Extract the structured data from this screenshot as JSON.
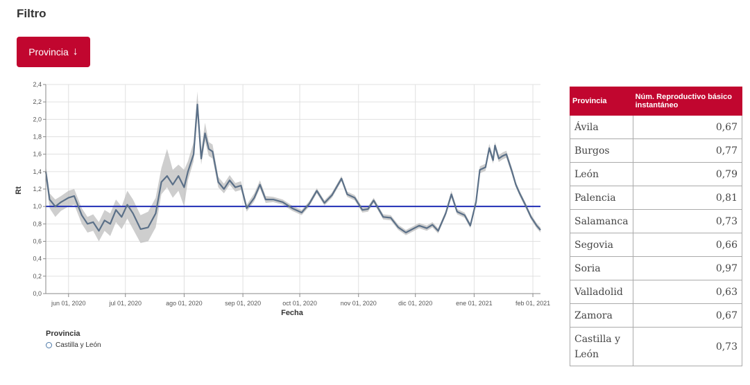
{
  "header": {
    "title": "Filtro"
  },
  "filter_button": {
    "label": "Provincia",
    "icon": "arrow-down-icon"
  },
  "colors": {
    "accent": "#c1062f",
    "series_line": "#5b7088",
    "band": "#bdbdbd",
    "reference_line": "#1f2db5"
  },
  "legend": {
    "title": "Provincia",
    "items": [
      "Castilla y León"
    ]
  },
  "table": {
    "headers": [
      "Provincia",
      "Núm. Reproductivo básico instantáneo"
    ],
    "rows": [
      {
        "provincia": "Ávila",
        "valor": "0,67"
      },
      {
        "provincia": "Burgos",
        "valor": "0,77"
      },
      {
        "provincia": "León",
        "valor": "0,79"
      },
      {
        "provincia": "Palencia",
        "valor": "0,81"
      },
      {
        "provincia": "Salamanca",
        "valor": "0,73"
      },
      {
        "provincia": "Segovia",
        "valor": "0,66"
      },
      {
        "provincia": "Soria",
        "valor": "0,97"
      },
      {
        "provincia": "Valladolid",
        "valor": "0,63"
      },
      {
        "provincia": "Zamora",
        "valor": "0,67"
      },
      {
        "provincia": "Castilla y León",
        "valor": "0,73"
      }
    ]
  },
  "chart_data": {
    "type": "line",
    "xlabel": "Fecha",
    "ylabel": "Rt",
    "ylim": [
      0,
      2.4
    ],
    "xlim": [
      "2020-05-20",
      "2021-02-05"
    ],
    "grid": true,
    "legend_placement": "bottom-left",
    "yticks": [
      "0,0",
      "0,2",
      "0,4",
      "0,6",
      "0,8",
      "1,0",
      "1,2",
      "1,4",
      "1,6",
      "1,8",
      "2,0",
      "2,2",
      "2,4"
    ],
    "xticks": [
      {
        "date": "2020-06-01",
        "label": "jun 01, 2020"
      },
      {
        "date": "2020-07-01",
        "label": "jul 01, 2020"
      },
      {
        "date": "2020-08-01",
        "label": "ago 01, 2020"
      },
      {
        "date": "2020-09-01",
        "label": "sep 01, 2020"
      },
      {
        "date": "2020-10-01",
        "label": "oct 01, 2020"
      },
      {
        "date": "2020-11-01",
        "label": "nov 01, 2020"
      },
      {
        "date": "2020-12-01",
        "label": "dic 01, 2020"
      },
      {
        "date": "2021-01-01",
        "label": "ene 01, 2021"
      },
      {
        "date": "2021-02-01",
        "label": "feb 01, 2021"
      }
    ],
    "reference_line": 1.0,
    "series": [
      {
        "name": "Castilla y León",
        "points": [
          {
            "x": "2020-05-20",
            "y": 1.4,
            "lo": 1.33,
            "hi": 1.47
          },
          {
            "x": "2020-05-22",
            "y": 1.08,
            "lo": 0.98,
            "hi": 1.15
          },
          {
            "x": "2020-05-25",
            "y": 1.0,
            "lo": 0.88,
            "hi": 1.08
          },
          {
            "x": "2020-05-28",
            "y": 1.05,
            "lo": 0.95,
            "hi": 1.12
          },
          {
            "x": "2020-06-01",
            "y": 1.1,
            "lo": 1.0,
            "hi": 1.18
          },
          {
            "x": "2020-06-04",
            "y": 1.12,
            "lo": 1.02,
            "hi": 1.2
          },
          {
            "x": "2020-06-08",
            "y": 0.9,
            "lo": 0.8,
            "hi": 0.98
          },
          {
            "x": "2020-06-11",
            "y": 0.8,
            "lo": 0.7,
            "hi": 0.88
          },
          {
            "x": "2020-06-14",
            "y": 0.82,
            "lo": 0.72,
            "hi": 0.91
          },
          {
            "x": "2020-06-17",
            "y": 0.72,
            "lo": 0.6,
            "hi": 0.82
          },
          {
            "x": "2020-06-20",
            "y": 0.84,
            "lo": 0.72,
            "hi": 0.96
          },
          {
            "x": "2020-06-23",
            "y": 0.8,
            "lo": 0.66,
            "hi": 0.92
          },
          {
            "x": "2020-06-26",
            "y": 0.96,
            "lo": 0.82,
            "hi": 1.08
          },
          {
            "x": "2020-06-29",
            "y": 0.88,
            "lo": 0.74,
            "hi": 1.0
          },
          {
            "x": "2020-07-02",
            "y": 1.02,
            "lo": 0.86,
            "hi": 1.18
          },
          {
            "x": "2020-07-05",
            "y": 0.92,
            "lo": 0.74,
            "hi": 1.08
          },
          {
            "x": "2020-07-09",
            "y": 0.74,
            "lo": 0.58,
            "hi": 0.9
          },
          {
            "x": "2020-07-13",
            "y": 0.76,
            "lo": 0.6,
            "hi": 0.94
          },
          {
            "x": "2020-07-17",
            "y": 0.92,
            "lo": 0.76,
            "hi": 1.1
          },
          {
            "x": "2020-07-20",
            "y": 1.28,
            "lo": 1.14,
            "hi": 1.44
          },
          {
            "x": "2020-07-23",
            "y": 1.35,
            "lo": 1.22,
            "hi": 1.66
          },
          {
            "x": "2020-07-26",
            "y": 1.25,
            "lo": 1.1,
            "hi": 1.42
          },
          {
            "x": "2020-07-29",
            "y": 1.35,
            "lo": 1.18,
            "hi": 1.48
          },
          {
            "x": "2020-08-01",
            "y": 1.22,
            "lo": 1.0,
            "hi": 1.42
          },
          {
            "x": "2020-08-03",
            "y": 1.4,
            "lo": 1.3,
            "hi": 1.52
          },
          {
            "x": "2020-08-06",
            "y": 1.6,
            "lo": 1.52,
            "hi": 1.74
          },
          {
            "x": "2020-08-08",
            "y": 2.17,
            "lo": 2.04,
            "hi": 2.32
          },
          {
            "x": "2020-08-10",
            "y": 1.55,
            "lo": 1.48,
            "hi": 1.64
          },
          {
            "x": "2020-08-12",
            "y": 1.84,
            "lo": 1.75,
            "hi": 1.96
          },
          {
            "x": "2020-08-14",
            "y": 1.66,
            "lo": 1.58,
            "hi": 1.74
          },
          {
            "x": "2020-08-16",
            "y": 1.63,
            "lo": 1.55,
            "hi": 1.71
          },
          {
            "x": "2020-08-19",
            "y": 1.28,
            "lo": 1.22,
            "hi": 1.34
          },
          {
            "x": "2020-08-22",
            "y": 1.2,
            "lo": 1.15,
            "hi": 1.26
          },
          {
            "x": "2020-08-25",
            "y": 1.3,
            "lo": 1.25,
            "hi": 1.36
          },
          {
            "x": "2020-08-28",
            "y": 1.22,
            "lo": 1.17,
            "hi": 1.27
          },
          {
            "x": "2020-08-31",
            "y": 1.24,
            "lo": 1.19,
            "hi": 1.29
          },
          {
            "x": "2020-09-03",
            "y": 0.98,
            "lo": 0.94,
            "hi": 1.02
          },
          {
            "x": "2020-09-07",
            "y": 1.1,
            "lo": 1.06,
            "hi": 1.15
          },
          {
            "x": "2020-09-10",
            "y": 1.25,
            "lo": 1.21,
            "hi": 1.3
          },
          {
            "x": "2020-09-13",
            "y": 1.08,
            "lo": 1.04,
            "hi": 1.12
          },
          {
            "x": "2020-09-17",
            "y": 1.08,
            "lo": 1.05,
            "hi": 1.11
          },
          {
            "x": "2020-09-22",
            "y": 1.05,
            "lo": 1.02,
            "hi": 1.08
          },
          {
            "x": "2020-09-27",
            "y": 0.98,
            "lo": 0.95,
            "hi": 1.01
          },
          {
            "x": "2020-10-02",
            "y": 0.93,
            "lo": 0.9,
            "hi": 0.96
          },
          {
            "x": "2020-10-06",
            "y": 1.03,
            "lo": 1.0,
            "hi": 1.06
          },
          {
            "x": "2020-10-10",
            "y": 1.18,
            "lo": 1.15,
            "hi": 1.21
          },
          {
            "x": "2020-10-14",
            "y": 1.04,
            "lo": 1.01,
            "hi": 1.07
          },
          {
            "x": "2020-10-18",
            "y": 1.13,
            "lo": 1.1,
            "hi": 1.16
          },
          {
            "x": "2020-10-23",
            "y": 1.32,
            "lo": 1.29,
            "hi": 1.35
          },
          {
            "x": "2020-10-26",
            "y": 1.14,
            "lo": 1.11,
            "hi": 1.17
          },
          {
            "x": "2020-10-30",
            "y": 1.1,
            "lo": 1.07,
            "hi": 1.13
          },
          {
            "x": "2020-11-03",
            "y": 0.96,
            "lo": 0.93,
            "hi": 0.99
          },
          {
            "x": "2020-11-06",
            "y": 0.97,
            "lo": 0.94,
            "hi": 1.0
          },
          {
            "x": "2020-11-09",
            "y": 1.07,
            "lo": 1.04,
            "hi": 1.1
          },
          {
            "x": "2020-11-14",
            "y": 0.88,
            "lo": 0.85,
            "hi": 0.91
          },
          {
            "x": "2020-11-18",
            "y": 0.87,
            "lo": 0.84,
            "hi": 0.9
          },
          {
            "x": "2020-11-22",
            "y": 0.76,
            "lo": 0.73,
            "hi": 0.79
          },
          {
            "x": "2020-11-26",
            "y": 0.7,
            "lo": 0.67,
            "hi": 0.73
          },
          {
            "x": "2020-12-03",
            "y": 0.78,
            "lo": 0.75,
            "hi": 0.81
          },
          {
            "x": "2020-12-07",
            "y": 0.75,
            "lo": 0.72,
            "hi": 0.78
          },
          {
            "x": "2020-12-10",
            "y": 0.79,
            "lo": 0.76,
            "hi": 0.82
          },
          {
            "x": "2020-12-13",
            "y": 0.72,
            "lo": 0.69,
            "hi": 0.75
          },
          {
            "x": "2020-12-17",
            "y": 0.92,
            "lo": 0.89,
            "hi": 0.95
          },
          {
            "x": "2020-12-20",
            "y": 1.14,
            "lo": 1.1,
            "hi": 1.18
          },
          {
            "x": "2020-12-23",
            "y": 0.94,
            "lo": 0.91,
            "hi": 0.97
          },
          {
            "x": "2020-12-27",
            "y": 0.9,
            "lo": 0.87,
            "hi": 0.93
          },
          {
            "x": "2020-12-30",
            "y": 0.78,
            "lo": 0.75,
            "hi": 0.81
          },
          {
            "x": "2021-01-02",
            "y": 1.05,
            "lo": 1.01,
            "hi": 1.09
          },
          {
            "x": "2021-01-04",
            "y": 1.42,
            "lo": 1.38,
            "hi": 1.46
          },
          {
            "x": "2021-01-07",
            "y": 1.45,
            "lo": 1.41,
            "hi": 1.49
          },
          {
            "x": "2021-01-09",
            "y": 1.67,
            "lo": 1.63,
            "hi": 1.72
          },
          {
            "x": "2021-01-11",
            "y": 1.53,
            "lo": 1.49,
            "hi": 1.57
          },
          {
            "x": "2021-01-12",
            "y": 1.7,
            "lo": 1.66,
            "hi": 1.74
          },
          {
            "x": "2021-01-14",
            "y": 1.55,
            "lo": 1.51,
            "hi": 1.59
          },
          {
            "x": "2021-01-16",
            "y": 1.58,
            "lo": 1.54,
            "hi": 1.62
          },
          {
            "x": "2021-01-18",
            "y": 1.6,
            "lo": 1.56,
            "hi": 1.64
          },
          {
            "x": "2021-01-21",
            "y": 1.4,
            "lo": 1.36,
            "hi": 1.44
          },
          {
            "x": "2021-01-23",
            "y": 1.25,
            "lo": 1.22,
            "hi": 1.28
          },
          {
            "x": "2021-01-25",
            "y": 1.15,
            "lo": 1.12,
            "hi": 1.18
          },
          {
            "x": "2021-01-28",
            "y": 1.02,
            "lo": 0.99,
            "hi": 1.05
          },
          {
            "x": "2021-01-31",
            "y": 0.88,
            "lo": 0.85,
            "hi": 0.91
          },
          {
            "x": "2021-02-03",
            "y": 0.78,
            "lo": 0.75,
            "hi": 0.81
          },
          {
            "x": "2021-02-05",
            "y": 0.73,
            "lo": 0.7,
            "hi": 0.76
          }
        ]
      }
    ]
  }
}
